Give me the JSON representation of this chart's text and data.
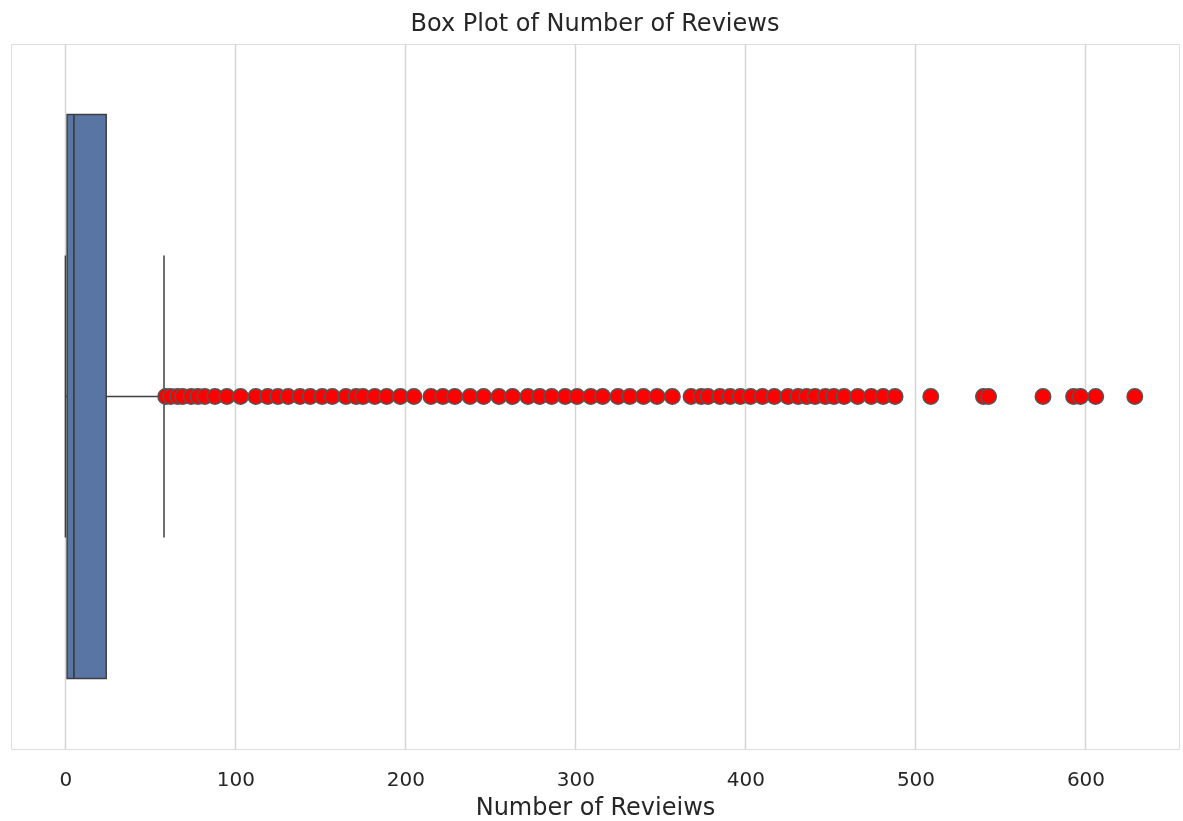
{
  "chart_data": {
    "type": "box",
    "title": "Box Plot of Number of Reviews",
    "xlabel": "Number of Revieiws",
    "orientation": "horizontal",
    "categories": [
      null
    ],
    "series": [
      {
        "color": "#5975a4",
        "boxes": [
          {
            "low": 0,
            "q1": 1,
            "median": 5,
            "q3": 24,
            "high": 58,
            "outliers": [
              59,
              62,
              66,
              69,
              74,
              78,
              82,
              88,
              95,
              103,
              112,
              119,
              125,
              131,
              138,
              144,
              151,
              157,
              165,
              171,
              175,
              182,
              189,
              197,
              205,
              215,
              222,
              229,
              238,
              246,
              255,
              263,
              272,
              279,
              286,
              294,
              301,
              309,
              316,
              325,
              332,
              340,
              348,
              357,
              368,
              374,
              378,
              385,
              391,
              397,
              403,
              410,
              417,
              425,
              431,
              436,
              441,
              447,
              452,
              458,
              466,
              474,
              481,
              488,
              509,
              540,
              543,
              575,
              593,
              597,
              606,
              629
            ]
          }
        ]
      }
    ],
    "colors": [
      "#ff0000"
    ],
    "marker": "circle",
    "xlim": [
      -32,
      655
    ],
    "xticks": [
      0,
      100,
      200,
      300,
      400,
      500,
      600
    ],
    "grid": "x"
  }
}
